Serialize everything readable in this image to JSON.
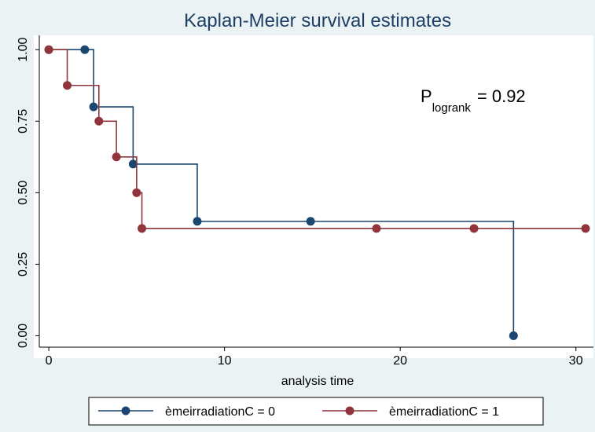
{
  "chart_data": {
    "type": "step",
    "title": "Kaplan-Meier survival estimates",
    "x_label": "analysis time",
    "annotation": {
      "main": "P",
      "subscript": "logrank",
      "text": "=  0.92"
    },
    "xlim": [
      -0.54,
      30.55
    ],
    "xticks": [
      0,
      10,
      20,
      30
    ],
    "ylim": [
      -0.04,
      1.05
    ],
    "yticks": [
      {
        "value": 0,
        "label": "0.00"
      },
      {
        "value": 0.25,
        "label": "0.25"
      },
      {
        "value": 0.5,
        "label": "0.50"
      },
      {
        "value": 0.75,
        "label": "0.75"
      },
      {
        "value": 1,
        "label": "1.00"
      }
    ],
    "series": [
      {
        "name": "èmeirradiationC = 0",
        "color": "#1a476f",
        "x": [
          0,
          2.05,
          2.55,
          4.8,
          8.45,
          14.9,
          26.45
        ],
        "values": [
          1,
          1,
          0.8,
          0.6,
          0.4,
          0.4,
          0
        ]
      },
      {
        "name": "èmeirradiationC = 1",
        "color": "#90353b",
        "x": [
          0,
          1.05,
          2.85,
          3.85,
          5.0,
          5.3,
          18.65,
          24.2,
          30.55
        ],
        "values": [
          1,
          0.875,
          0.75,
          0.625,
          0.5,
          0.375,
          0.375,
          0.375,
          0.375
        ]
      }
    ]
  }
}
